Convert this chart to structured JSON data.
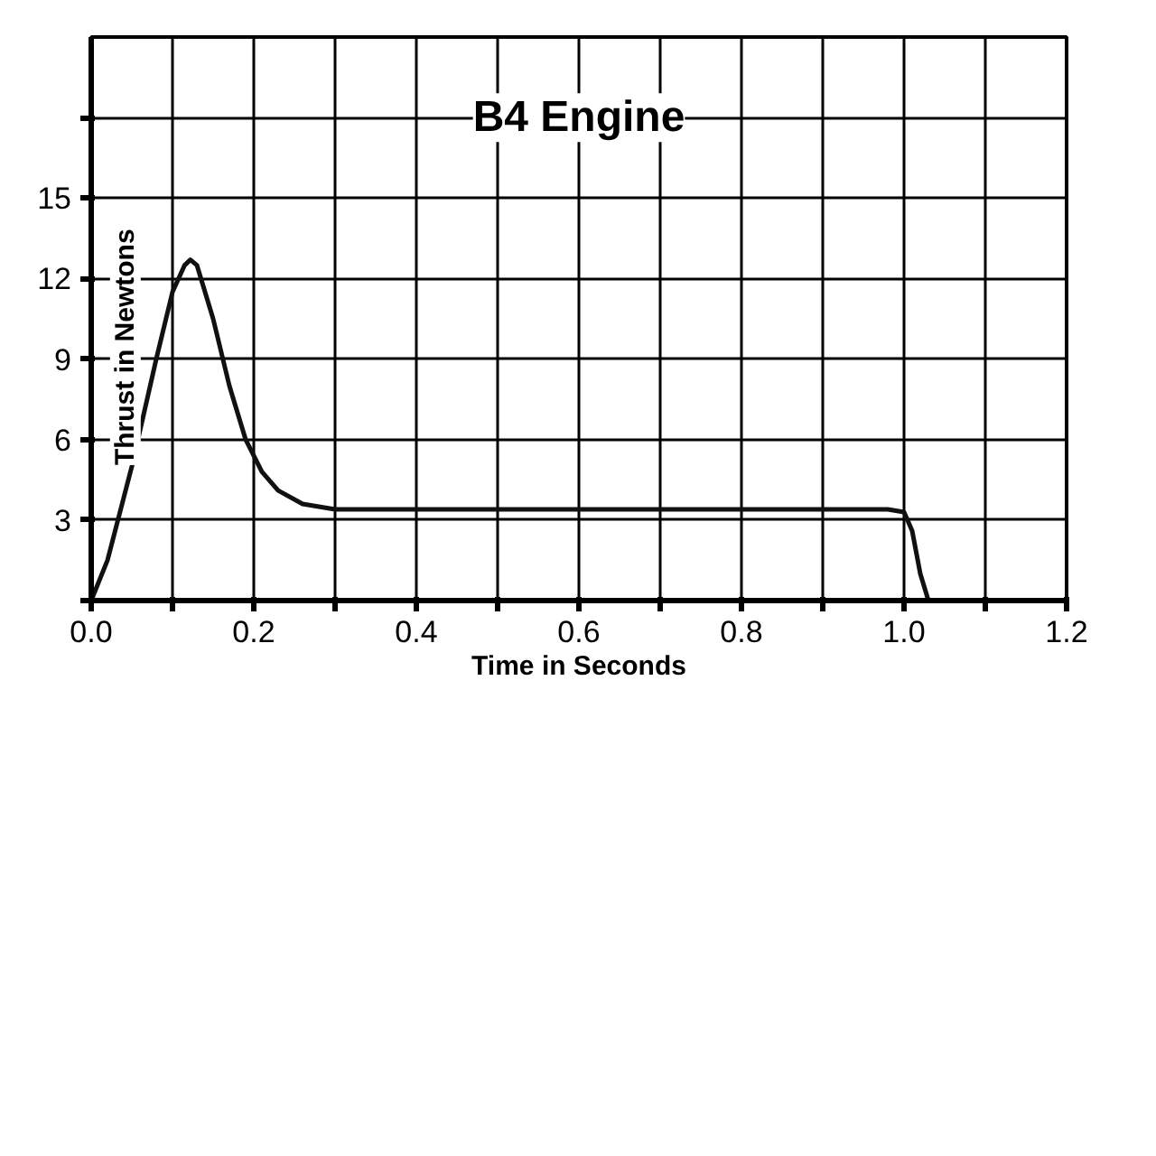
{
  "chart_data": {
    "type": "line",
    "title": "B4 Engine",
    "xlabel": "Time in Seconds",
    "ylabel": "Thrust in Newtons",
    "x": [
      0,
      0.02,
      0.05,
      0.08,
      0.1,
      0.115,
      0.122,
      0.13,
      0.15,
      0.17,
      0.19,
      0.21,
      0.23,
      0.26,
      0.3,
      0.5,
      0.8,
      0.98,
      1.0,
      1.01,
      1.02,
      1.03
    ],
    "series": [
      {
        "color": "#111111",
        "values": [
          0,
          1.5,
          5,
          9,
          11.5,
          12.5,
          12.7,
          12.5,
          10.5,
          8,
          6,
          4.8,
          4.1,
          3.6,
          3.4,
          3.4,
          3.4,
          3.4,
          3.3,
          2.6,
          1,
          0
        ]
      }
    ],
    "xlim": [
      0,
      1.2
    ],
    "ylim": [
      0,
      21
    ],
    "xticks": [
      {
        "value": 0,
        "label": "0.0"
      },
      {
        "value": 0.1,
        "label": null
      },
      0.2,
      {
        "value": 0.3,
        "label": null
      },
      0.4,
      {
        "value": 0.5,
        "label": null
      },
      0.6,
      {
        "value": 0.7,
        "label": null
      },
      0.8,
      {
        "value": 0.9,
        "label": null
      },
      {
        "value": 1,
        "label": "1.0"
      },
      {
        "value": 1.1,
        "label": null
      },
      1.2
    ],
    "yticks": [
      {
        "value": 0,
        "label": null
      },
      3,
      6,
      9,
      12,
      15,
      {
        "value": 18,
        "label": null
      }
    ],
    "grid": true,
    "marker": "none",
    "line_style": "solid"
  }
}
